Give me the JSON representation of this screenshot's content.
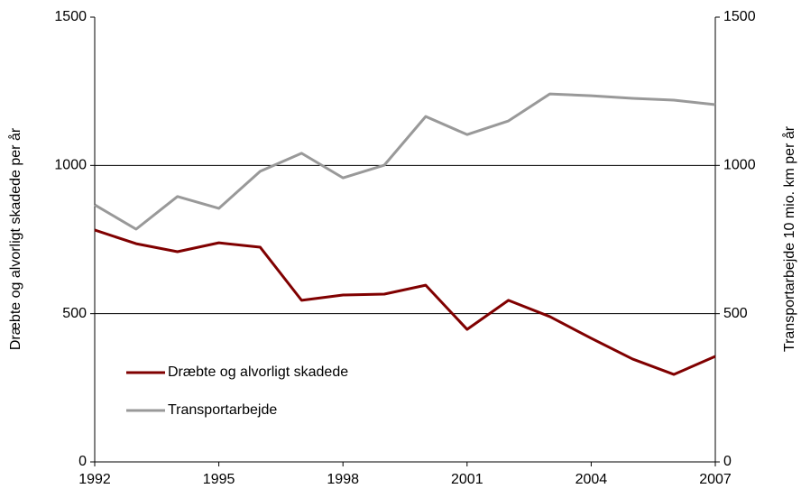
{
  "chart_data": {
    "type": "line",
    "x": [
      1992,
      1993,
      1994,
      1995,
      1996,
      1997,
      1998,
      1999,
      2000,
      2001,
      2002,
      2003,
      2004,
      2005,
      2006,
      2007
    ],
    "series": [
      {
        "name": "Dræbte og alvorligt skadede",
        "color": "#800000",
        "values": [
          782,
          736,
          709,
          739,
          724,
          545,
          563,
          566,
          596,
          447,
          545,
          490,
          417,
          347,
          295,
          356
        ]
      },
      {
        "name": "Transportarbejde",
        "color": "#999999",
        "axis": "y2",
        "values": [
          867,
          785,
          895,
          855,
          980,
          1041,
          958,
          1001,
          1165,
          1104,
          1150,
          1241,
          1235,
          1226,
          1220,
          1205
        ]
      }
    ],
    "xlim": [
      1992,
      2007
    ],
    "xticks": [
      1992,
      1995,
      1998,
      2001,
      2004,
      2007
    ],
    "ylim": [
      0,
      1500
    ],
    "yticks": [
      0,
      500,
      1000,
      1500
    ],
    "y2lim": [
      0,
      1500
    ],
    "y2ticks": [
      0,
      500,
      1000,
      1500
    ],
    "y_label": "Dræbte og alvorligt skadede per år",
    "y2_label": "Transportarbejde 10 mio. km per år",
    "grid": true,
    "legend": "lower left"
  }
}
